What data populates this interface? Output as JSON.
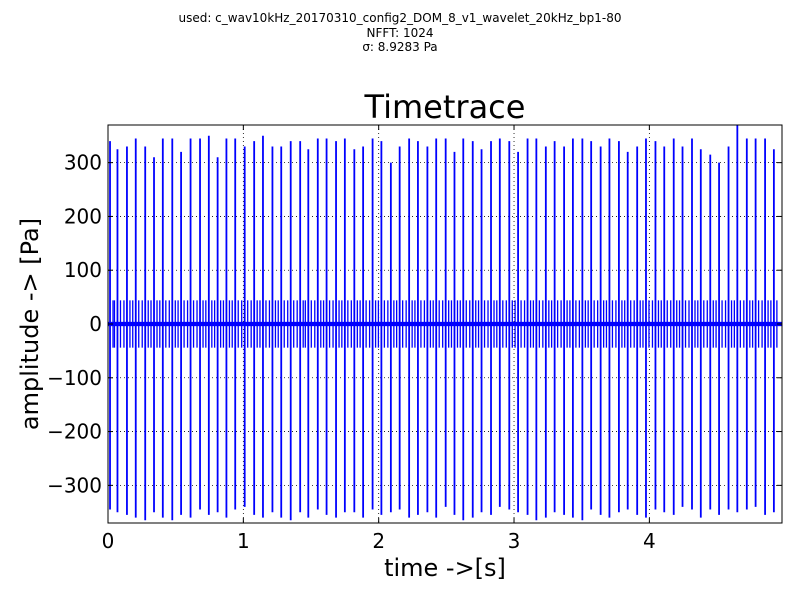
{
  "header": {
    "used_line": "used: c_wav10kHz_20170310_config2_DOM_8_v1_wavelet_20kHz_bp1-80",
    "nfft_line": "NFFT: 1024",
    "sigma_line": "σ: 8.9283 Pa"
  },
  "colors": {
    "signal": "#0000ff",
    "grid": "#000000",
    "axes": "#000000",
    "background": "#ffffff"
  },
  "chart_data": {
    "type": "line",
    "title": "Timetrace",
    "xlabel": "time ->[s]",
    "ylabel": "amplitude -> [Pa]",
    "xlim": [
      0,
      4.98
    ],
    "ylim": [
      -370,
      370
    ],
    "grid": true,
    "x_ticks": [
      0,
      1,
      2,
      3,
      4
    ],
    "x_tick_labels": [
      "0",
      "1",
      "2",
      "3",
      "4"
    ],
    "y_ticks": [
      -300,
      -200,
      -100,
      0,
      100,
      200,
      300
    ],
    "y_tick_labels": [
      "−300",
      "−200",
      "−100",
      "0",
      "100",
      "200",
      "300"
    ],
    "series": [
      {
        "pulse_times": [
          0.015,
          0.07,
          0.14,
          0.205,
          0.275,
          0.34,
          0.405,
          0.475,
          0.54,
          0.61,
          0.68,
          0.745,
          0.81,
          0.875,
          0.94,
          1.01,
          1.08,
          1.145,
          1.215,
          1.28,
          1.35,
          1.42,
          1.48,
          1.55,
          1.615,
          1.685,
          1.75,
          1.82,
          1.885,
          1.955,
          2.02,
          2.09,
          2.155,
          2.225,
          2.29,
          2.36,
          2.425,
          2.495,
          2.56,
          2.625,
          2.695,
          2.76,
          2.83,
          2.895,
          2.965,
          3.03,
          3.1,
          3.165,
          3.235,
          3.3,
          3.37,
          3.435,
          3.505,
          3.57,
          3.64,
          3.705,
          3.775,
          3.84,
          3.91,
          3.975,
          4.045,
          4.11,
          4.18,
          4.245,
          4.315,
          4.38,
          4.45,
          4.515,
          4.585,
          4.65,
          4.72,
          4.785,
          4.855,
          4.92
        ],
        "peak_pos": [
          340,
          325,
          330,
          345,
          330,
          310,
          345,
          345,
          320,
          345,
          345,
          350,
          310,
          345,
          345,
          330,
          340,
          350,
          330,
          330,
          340,
          340,
          325,
          345,
          345,
          340,
          345,
          325,
          330,
          345,
          340,
          300,
          330,
          345,
          340,
          330,
          345,
          345,
          320,
          345,
          340,
          325,
          340,
          345,
          340,
          320,
          345,
          345,
          330,
          340,
          330,
          345,
          345,
          340,
          330,
          345,
          340,
          320,
          330,
          345,
          340,
          330,
          345,
          330,
          345,
          325,
          315,
          300,
          330,
          370,
          345,
          345,
          345,
          325
        ],
        "peak_neg": [
          -345,
          -350,
          -355,
          -360,
          -365,
          -350,
          -360,
          -365,
          -355,
          -360,
          -345,
          -355,
          -350,
          -360,
          -345,
          -340,
          -355,
          -360,
          -350,
          -360,
          -365,
          -350,
          -360,
          -345,
          -355,
          -360,
          -350,
          -350,
          -360,
          -345,
          -355,
          -350,
          -345,
          -360,
          -355,
          -350,
          -360,
          -340,
          -355,
          -365,
          -360,
          -350,
          -355,
          -340,
          -345,
          -350,
          -355,
          -365,
          -360,
          -350,
          -355,
          -360,
          -365,
          -345,
          -355,
          -360,
          -350,
          -345,
          -355,
          -360,
          -345,
          -350,
          -355,
          -340,
          -345,
          -360,
          -345,
          -355,
          -345,
          -350,
          -345,
          -340,
          -355,
          -350
        ]
      }
    ]
  }
}
